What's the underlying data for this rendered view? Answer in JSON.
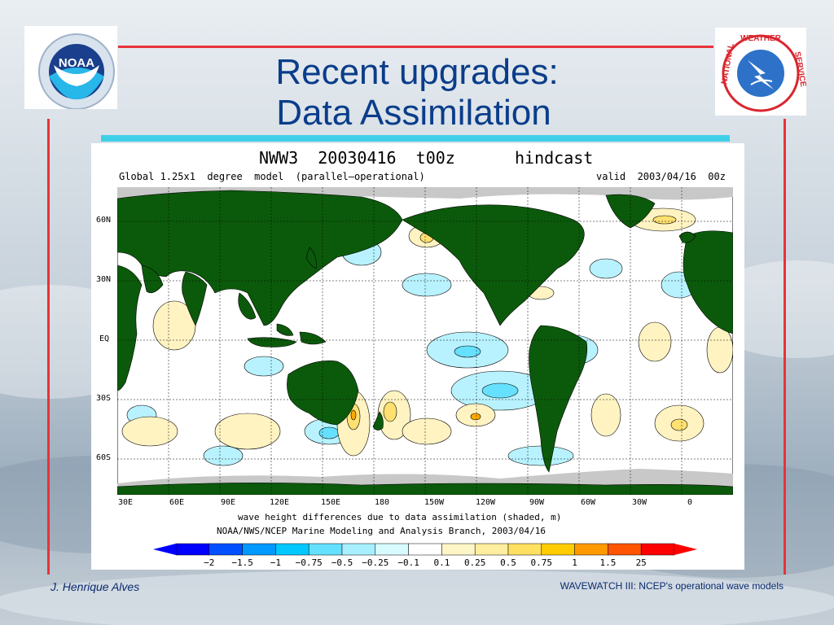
{
  "slide": {
    "title_line1": "Recent upgrades:",
    "title_line2": "Data Assimilation",
    "author": "J. Henrique Alves",
    "caption": "WAVEWATCH III: NCEP's operational wave models"
  },
  "logos": {
    "left": {
      "text": "NOAA",
      "icon": "noaa-logo"
    },
    "right": {
      "text": "NATIONAL WEATHER SERVICE",
      "icon": "nws-logo"
    }
  },
  "figure": {
    "header_left": "NWW3  20030416  t00z",
    "header_right": "hindcast",
    "subtitle_left": "Global 1.25x1  degree  model  (parallel—operational)",
    "subtitle_right": "valid  2003/04/16  00z",
    "lat_labels": [
      "60N",
      "30N",
      "EQ",
      "30S",
      "60S"
    ],
    "lon_labels": [
      "30E",
      "60E",
      "90E",
      "120E",
      "150E",
      "180",
      "150W",
      "120W",
      "90W",
      "60W",
      "30W",
      "0"
    ],
    "caption_line1": "wave height differences due to data assimilation (shaded, m)",
    "caption_line2": "NOAA/NWS/NCEP Marine Modeling and Analysis Branch, 2003/04/16",
    "colorbar_labels": [
      "−2",
      "−1.5",
      "−1",
      "−0.75",
      "−0.5",
      "−0.25",
      "−0.1",
      "0.1",
      "0.25",
      "0.5",
      "0.75",
      "1",
      "1.5",
      "25"
    ],
    "colorbar_colors": [
      "#0000ff",
      "#0050ff",
      "#0099ff",
      "#00c8ff",
      "#66e0ff",
      "#a8f0ff",
      "#d8fbff",
      "#ffffff",
      "#fff6c8",
      "#ffeea0",
      "#ffe060",
      "#ffcc00",
      "#ff9900",
      "#ff5500",
      "#ff0000"
    ]
  },
  "colors": {
    "title": "#0a3d8a",
    "frame": "#e8323a",
    "accent_bar": "#3fd0e8",
    "land": "#0b5a0b",
    "ice": "#c8c8c8"
  }
}
